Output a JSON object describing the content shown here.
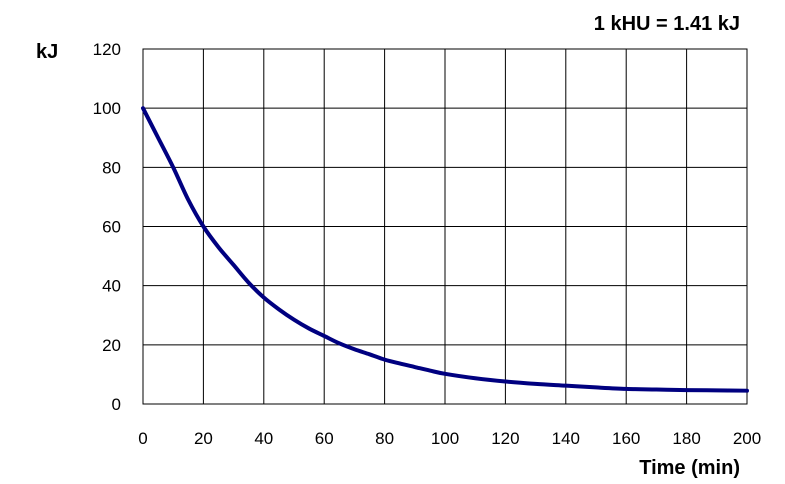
{
  "chart_data": {
    "type": "line",
    "annotation": "1 kHU = 1.41 kJ",
    "xlabel": "Time (min)",
    "ylabel": "kJ",
    "xlim": [
      0,
      200
    ],
    "ylim": [
      0,
      120
    ],
    "x_ticks": [
      "0",
      "20",
      "40",
      "60",
      "80",
      "100",
      "120",
      "140",
      "160",
      "180",
      "200"
    ],
    "y_ticks": [
      "0",
      "20",
      "40",
      "60",
      "80",
      "100",
      "120"
    ],
    "grid": true,
    "legend": "none",
    "series": [
      {
        "color": "#000080",
        "x": [
          0,
          5,
          10,
          15,
          20,
          25,
          30,
          35,
          40,
          45,
          50,
          55,
          60,
          65,
          70,
          75,
          80,
          85,
          90,
          95,
          100,
          110,
          120,
          130,
          140,
          150,
          160,
          170,
          180,
          190,
          200
        ],
        "y": [
          100,
          90,
          80,
          69,
          60,
          53,
          47,
          41,
          36,
          32,
          28.5,
          25.5,
          23,
          20.5,
          18.5,
          16.8,
          15,
          13.7,
          12.5,
          11.3,
          10.2,
          8.7,
          7.6,
          6.8,
          6.2,
          5.6,
          5.1,
          4.9,
          4.7,
          4.6,
          4.5
        ]
      }
    ]
  }
}
